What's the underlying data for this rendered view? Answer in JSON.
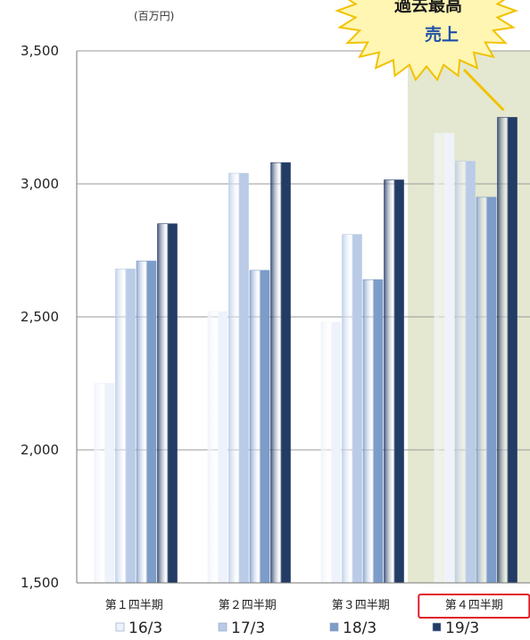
{
  "unit_label": "(百万円)",
  "callout": {
    "line1": "過去最高",
    "line2": "売上",
    "color_fill": "#fff6b3",
    "color_stroke": "#f2c200"
  },
  "highlight": {
    "category_index": 3,
    "band_color": "#e4e8d0",
    "box_color": "#e0202a"
  },
  "chart_data": {
    "type": "bar",
    "title": "",
    "xlabel": "",
    "ylabel": "",
    "categories": [
      "第１四半期",
      "第２四半期",
      "第３四半期",
      "第４四半期"
    ],
    "ylim": [
      1500,
      3500
    ],
    "yticks": [
      1500,
      2000,
      2500,
      3000,
      3500
    ],
    "ytick_labels": [
      "1,500",
      "2,000",
      "2,500",
      "3,000",
      "3,500"
    ],
    "grid": true,
    "legend_position": "bottom",
    "series": [
      {
        "name": "16/3",
        "values": [
          2250,
          2520,
          2480,
          3190
        ],
        "color": "#eef2fa"
      },
      {
        "name": "17/3",
        "values": [
          2680,
          3040,
          2810,
          3085
        ],
        "color": "#b9cbe6"
      },
      {
        "name": "18/3",
        "values": [
          2710,
          2675,
          2640,
          2950
        ],
        "color": "#7d9cc9"
      },
      {
        "name": "19/3",
        "values": [
          2850,
          3080,
          3015,
          3250
        ],
        "color": "#233c66"
      }
    ]
  }
}
